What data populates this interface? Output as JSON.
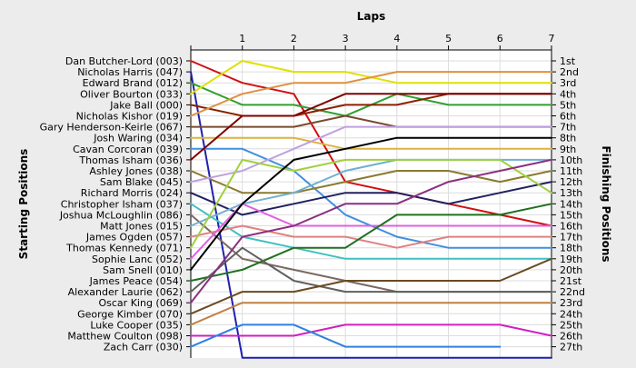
{
  "chart_data": {
    "type": "line",
    "title": "Laps",
    "ylabel_left": "Starting Positions",
    "ylabel_right": "Finishing Positions",
    "x": [
      0,
      1,
      2,
      3,
      4,
      5,
      6,
      7
    ],
    "x_tick_labels": [
      "1",
      "2",
      "3",
      "4",
      "5",
      "6",
      "7"
    ],
    "y_range": [
      1,
      27
    ],
    "y_inverted": true,
    "grid": true,
    "legend": "none",
    "starting_labels": [
      "Dan Butcher-Lord (003)",
      "Nicholas Harris (047)",
      "Edward Brand (012)",
      "Oliver Bourton (033)",
      "Jake Ball (000)",
      "Nicholas Kishor (019)",
      "Gary Henderson-Keirle (067)",
      "Josh Waring (034)",
      "Cavan Corcoran (039)",
      "Thomas Isham (036)",
      "Ashley Jones (038)",
      "Sam Blake (045)",
      "Richard Morris (024)",
      "Christopher Isham (037)",
      "Joshua McLoughlin (086)",
      "Matt Jones (015)",
      "James Ogden (057)",
      "Thomas Kennedy (071)",
      "Sophie Lanc (052)",
      "Sam Snell (010)",
      "James Peace (054)",
      "Alexander Laurie (062)",
      "Oscar King (069)",
      "George Kimber (070)",
      "Luke Cooper (035)",
      "Matthew Coulton (098)",
      "Zach Carr (030)"
    ],
    "finishing_labels": [
      "1st",
      "2nd",
      "3rd",
      "4th",
      "5th",
      "6th",
      "7th",
      "8th",
      "9th",
      "10th",
      "11th",
      "12th",
      "13th",
      "14th",
      "15th",
      "16th",
      "17th",
      "18th",
      "19th",
      "20th",
      "21st",
      "22nd",
      "23rd",
      "24th",
      "25th",
      "26th",
      "27th"
    ],
    "series": [
      {
        "color": "#d01010",
        "positions": [
          1,
          3,
          4,
          12,
          13,
          14,
          15,
          16
        ]
      },
      {
        "color": "#2020b0",
        "positions": [
          2,
          28,
          28,
          28,
          28,
          28,
          28,
          28
        ]
      },
      {
        "color": "#30a030",
        "positions": [
          3,
          5,
          5,
          6,
          4,
          5,
          5,
          5
        ]
      },
      {
        "color": "#e0e000",
        "positions": [
          4,
          1,
          2,
          2,
          3,
          3,
          3,
          3
        ]
      },
      {
        "color": "#8a2000",
        "positions": [
          5,
          6,
          6,
          5,
          5,
          4,
          4,
          4
        ]
      },
      {
        "color": "#e09040",
        "positions": [
          6,
          4,
          3,
          3,
          2,
          2,
          2,
          2
        ]
      },
      {
        "color": "#7a4a30",
        "positions": [
          7,
          7,
          7,
          6,
          7,
          7,
          7,
          7
        ]
      },
      {
        "color": "#e0b040",
        "positions": [
          8,
          8,
          8,
          9,
          9,
          9,
          9,
          9
        ]
      },
      {
        "color": "#4090e0",
        "positions": [
          9,
          9,
          11,
          15,
          17,
          18,
          18,
          18
        ]
      },
      {
        "color": "#800000",
        "positions": [
          10,
          6,
          6,
          4,
          4,
          4,
          4,
          4
        ]
      },
      {
        "color": "#8a7a30",
        "positions": [
          11,
          13,
          13,
          12,
          11,
          11,
          12,
          11
        ]
      },
      {
        "color": "#c0a0e0",
        "positions": [
          12,
          11,
          9,
          7,
          7,
          7,
          7,
          7
        ]
      },
      {
        "color": "#202060",
        "positions": [
          13,
          15,
          14,
          13,
          13,
          14,
          13,
          12
        ]
      },
      {
        "color": "#40c0c0",
        "positions": [
          14,
          17,
          18,
          19,
          19,
          19,
          19,
          19
        ]
      },
      {
        "color": "#7a6a60",
        "positions": [
          15,
          19,
          20,
          21,
          22,
          22,
          22,
          22
        ]
      },
      {
        "color": "#70b0d0",
        "positions": [
          16,
          14,
          13,
          11,
          10,
          10,
          10,
          10
        ]
      },
      {
        "color": "#e08080",
        "positions": [
          17,
          16,
          17,
          17,
          18,
          17,
          17,
          17
        ]
      },
      {
        "color": "#a0d040",
        "positions": [
          18,
          10,
          11,
          10,
          10,
          10,
          10,
          13
        ]
      },
      {
        "color": "#e060e0",
        "positions": [
          19,
          14,
          16,
          16,
          16,
          16,
          16,
          16
        ]
      },
      {
        "color": "#000000",
        "positions": [
          20,
          14,
          10,
          9,
          8,
          8,
          8,
          8
        ]
      },
      {
        "color": "#207020",
        "positions": [
          21,
          20,
          18,
          18,
          15,
          15,
          15,
          14
        ]
      },
      {
        "color": "#606060",
        "positions": [
          22,
          18,
          21,
          22,
          22,
          22,
          22,
          22
        ]
      },
      {
        "color": "#8a3080",
        "positions": [
          23,
          17,
          16,
          14,
          14,
          12,
          11,
          10
        ]
      },
      {
        "color": "#6a4a20",
        "positions": [
          24,
          22,
          22,
          21,
          21,
          21,
          21,
          19
        ]
      },
      {
        "color": "#c08040",
        "positions": [
          25,
          23,
          23,
          23,
          23,
          23,
          23,
          23
        ]
      },
      {
        "color": "#d020c0",
        "positions": [
          26,
          26,
          26,
          25,
          25,
          25,
          25,
          26
        ]
      },
      {
        "color": "#3080e0",
        "positions": [
          27,
          25,
          25,
          27,
          27,
          27,
          27,
          null
        ]
      }
    ]
  }
}
